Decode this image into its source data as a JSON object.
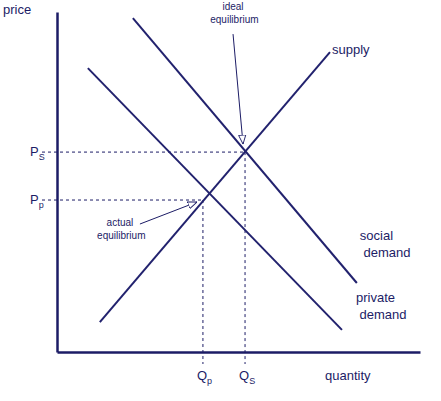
{
  "chart_data": {
    "type": "line",
    "xlabel": "quantity",
    "ylabel": "price",
    "xlim": [
      0,
      100
    ],
    "ylim": [
      0,
      100
    ],
    "xticks": [],
    "yticks": [],
    "tick_labels": false,
    "grid": false,
    "series": [
      {
        "name": "supply",
        "color": "#22226e",
        "x": [
          11.8,
          75.2
        ],
        "values": [
          8.8,
          88.2
        ]
      },
      {
        "name": "social demand",
        "color": "#22226e",
        "x": [
          20.9,
          82.6
        ],
        "values": [
          98.2,
          20.3
        ]
      },
      {
        "name": "private demand",
        "color": "#22226e",
        "x": [
          8.5,
          78.5
        ],
        "values": [
          83.5,
          6.5
        ]
      }
    ],
    "equilibria": [
      {
        "label": "actual equilibrium",
        "x": 40.2,
        "y": 44.7,
        "x_label": "Qp",
        "y_label": "Pp"
      },
      {
        "label": "ideal equilibrium",
        "x": 51.8,
        "y": 58.8,
        "x_label": "QS",
        "y_label": "PS"
      }
    ]
  }
}
